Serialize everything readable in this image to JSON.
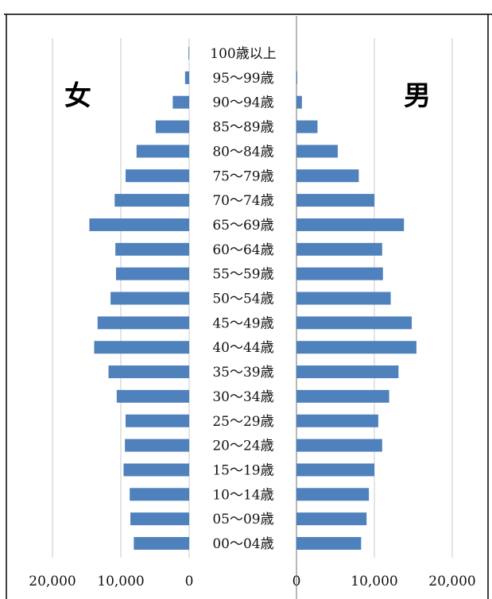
{
  "chart_data": {
    "type": "bar",
    "orientation": "horizontal",
    "left_label": "女",
    "right_label": "男",
    "categories": [
      "100歳以上",
      "95～99歳",
      "90～94歳",
      "85～89歳",
      "80～84歳",
      "75～79歳",
      "70～74歳",
      "65～69歳",
      "60～64歳",
      "55～59歳",
      "50～54歳",
      "45～49歳",
      "40～44歳",
      "35～39歳",
      "30～34歳",
      "25～29歳",
      "20～24歳",
      "15～19歳",
      "10～14歳",
      "05～09歳",
      "00～04歳"
    ],
    "series": [
      {
        "name": "女",
        "values": [
          100,
          600,
          2400,
          4900,
          7700,
          9300,
          10900,
          14600,
          10800,
          10700,
          11500,
          13400,
          13900,
          11800,
          10600,
          9300,
          9400,
          9600,
          8700,
          8600,
          8100
        ]
      },
      {
        "name": "男",
        "values": [
          0,
          100,
          700,
          2700,
          5300,
          8000,
          10000,
          13800,
          11000,
          11100,
          12100,
          14800,
          15400,
          13100,
          11900,
          10500,
          11000,
          10000,
          9300,
          9000,
          8300
        ]
      }
    ],
    "left_ticks": [
      "20,000",
      "10,000",
      "0"
    ],
    "right_ticks": [
      "0",
      "10,000",
      "20,000"
    ],
    "left_xlim": [
      0,
      20000
    ],
    "right_xlim": [
      0,
      20000
    ],
    "bar_color": "#4F81BD",
    "grid": true
  }
}
